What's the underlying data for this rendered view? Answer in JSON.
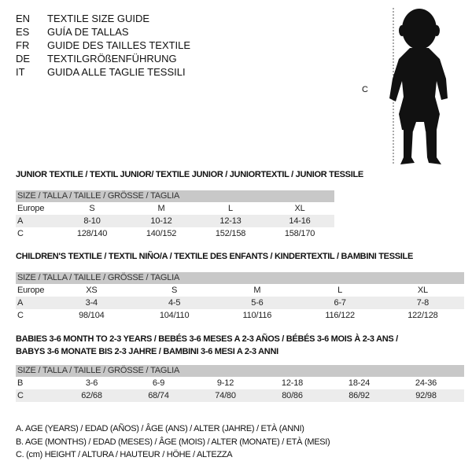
{
  "header": [
    {
      "code": "EN",
      "text": "TEXTILE SIZE GUIDE"
    },
    {
      "code": "ES",
      "text": "GUÍA DE TALLAS"
    },
    {
      "code": "FR",
      "text": "GUIDE DES TAILLES TEXTILE"
    },
    {
      "code": "DE",
      "text": "TEXTILGRÖßENFÜHRUNG"
    },
    {
      "code": "IT",
      "text": "GUIDA ALLE TAGLIE TESSILI"
    }
  ],
  "figure": {
    "measure_label": "C",
    "icon": "child-silhouette"
  },
  "sections": [
    {
      "title": "JUNIOR TEXTILE / TEXTIL JUNIOR/ TEXTILE JUNIOR / JUNIORTEXTIL / JUNIOR TESSILE",
      "size_header": "SIZE / TALLA / TAILLE / GRÖSSE / TAGLIA",
      "rows": [
        {
          "label": "Europe",
          "cells": [
            "S",
            "M",
            "L",
            "XL"
          ]
        },
        {
          "label": "A",
          "cells": [
            "8-10",
            "10-12",
            "12-13",
            "14-16"
          ]
        },
        {
          "label": "C",
          "cells": [
            "128/140",
            "140/152",
            "152/158",
            "158/170"
          ]
        }
      ]
    },
    {
      "title": "CHILDREN'S TEXTILE / TEXTIL NIÑO/A / TEXTILE DES ENFANTS / KINDERTEXTIL / BAMBINI TESSILE",
      "size_header": "SIZE / TALLA / TAILLE / GRÖSSE / TAGLIA",
      "rows": [
        {
          "label": "Europe",
          "cells": [
            "XS",
            "S",
            "M",
            "L",
            "XL"
          ]
        },
        {
          "label": "A",
          "cells": [
            "3-4",
            "4-5",
            "5-6",
            "6-7",
            "7-8"
          ]
        },
        {
          "label": "C",
          "cells": [
            "98/104",
            "104/110",
            "110/116",
            "116/122",
            "122/128"
          ]
        }
      ]
    },
    {
      "title": "BABIES 3-6 MONTH TO 2-3 YEARS / BEBÉS 3-6 MESES A 2-3 AÑOS / BÉBÉS 3-6 MOIS À 2-3 ANS /",
      "title2": "BABYS 3-6 MONATE BIS 2-3 JAHRE / BAMBINI 3-6 MESI A 2-3 ANNI",
      "size_header": "SIZE / TALLA / TAILLE / GRÖSSE / TAGLIA",
      "rows": [
        {
          "label": "B",
          "cells": [
            "3-6",
            "6-9",
            "9-12",
            "12-18",
            "18-24",
            "24-36"
          ]
        },
        {
          "label": "C",
          "cells": [
            "62/68",
            "68/74",
            "74/80",
            "80/86",
            "86/92",
            "92/98"
          ]
        }
      ]
    }
  ],
  "legend": [
    "A. AGE (YEARS) / EDAD (AÑOS) / ÂGE (ANS) / ALTER (JAHRE) / ETÀ (ANNI)",
    "B. AGE (MONTHS) / EDAD (MESES) / ÂGE (MOIS) / ALTER (MONATE) / ETÀ (MESI)",
    "C. (cm) HEIGHT / ALTURA / HAUTEUR / HÖHE / ALTEZZA"
  ]
}
